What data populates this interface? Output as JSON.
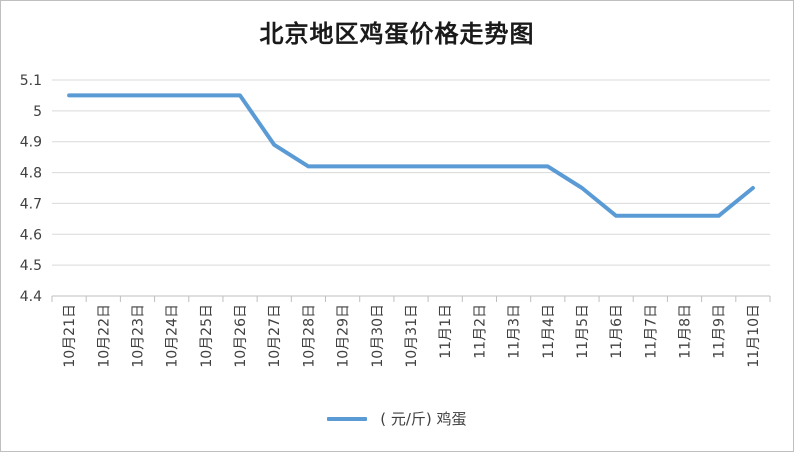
{
  "chart_data": {
    "type": "line",
    "title": "北京地区鸡蛋价格走势图",
    "categories": [
      "10月21日",
      "10月22日",
      "10月23日",
      "10月24日",
      "10月25日",
      "10月26日",
      "10月27日",
      "10月28日",
      "10月29日",
      "10月30日",
      "10月31日",
      "11月1日",
      "11月2日",
      "11月3日",
      "11月4日",
      "11月5日",
      "11月6日",
      "11月7日",
      "11月8日",
      "11月9日",
      "11月10日"
    ],
    "series": [
      {
        "name": "( 元/斤)  鸡蛋",
        "values": [
          5.05,
          5.05,
          5.05,
          5.05,
          5.05,
          5.05,
          4.89,
          4.82,
          4.82,
          4.82,
          4.82,
          4.82,
          4.82,
          4.82,
          4.82,
          4.75,
          4.66,
          4.66,
          4.66,
          4.66,
          4.75
        ],
        "color": "#5b9bd5"
      }
    ],
    "ylim": [
      4.4,
      5.1
    ],
    "yticks": [
      "4.4",
      "4.5",
      "4.6",
      "4.7",
      "4.8",
      "4.9",
      "5",
      "5.1"
    ],
    "xlabel": "",
    "ylabel": "",
    "grid": true,
    "legend": "bottom"
  }
}
